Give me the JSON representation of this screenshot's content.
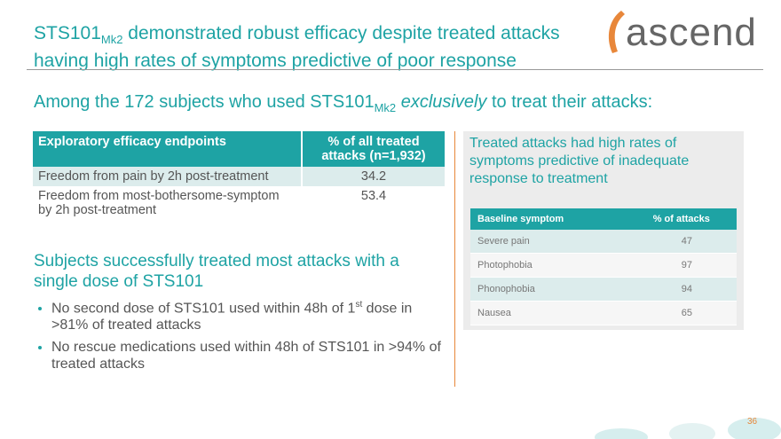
{
  "header": {
    "title_main": "STS101",
    "title_sub": "Mk2",
    "title_line1_rest": " demonstrated robust efficacy despite treated attacks",
    "title_line2": "having high rates of symptoms predictive of poor response",
    "logo": "ascend"
  },
  "subtitle": {
    "before": "Among the 172 subjects who used STS101",
    "sub": "Mk2",
    "italic": "exclusively",
    "after": " to treat their attacks:"
  },
  "table": {
    "headers": [
      "Exploratory efficacy endpoints",
      "% of all treated attacks (n=1,932)"
    ],
    "rows": [
      [
        "Freedom from pain by 2h post-treatment",
        "34.2"
      ],
      [
        "Freedom from most-bothersome-symptom by 2h post-treatment",
        "53.4"
      ]
    ]
  },
  "section": {
    "heading": "Subjects successfully treated most attacks with a single dose of STS101",
    "bullets": [
      {
        "before": "No second dose of STS101 used within 48h of 1",
        "sup": "st",
        "after": " dose in >81% of treated attacks"
      },
      {
        "text": "No rescue medications used within 48h of STS101 in >94% of treated attacks"
      }
    ]
  },
  "panel": {
    "heading": "Treated attacks had high rates of symptoms predictive of inadequate response to treatment",
    "table": {
      "headers": [
        "Baseline symptom",
        "% of attacks"
      ],
      "rows": [
        [
          "Severe pain",
          "47"
        ],
        [
          "Photophobia",
          "97"
        ],
        [
          "Phonophobia",
          "94"
        ],
        [
          "Nausea",
          "65"
        ]
      ]
    }
  },
  "footer": {
    "page": "36"
  }
}
